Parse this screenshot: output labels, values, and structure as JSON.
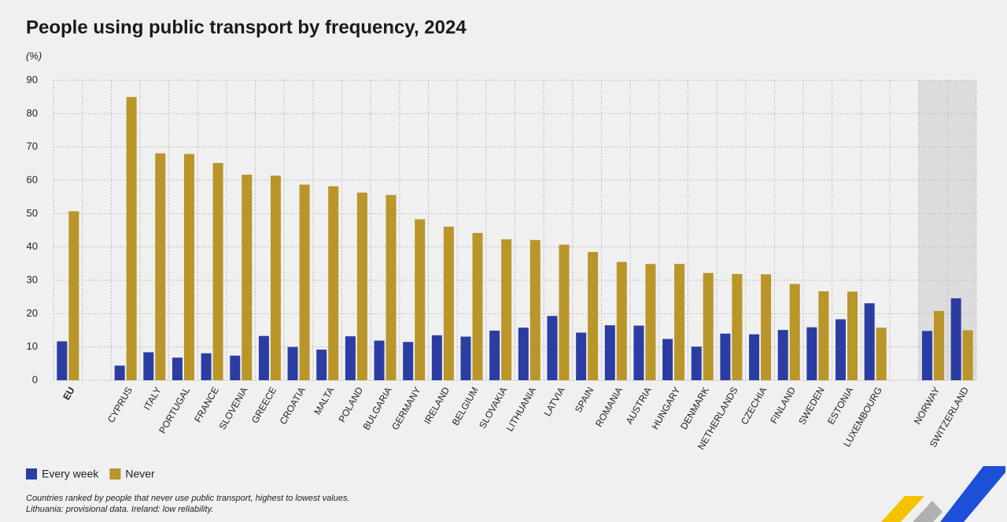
{
  "chart_data": {
    "type": "bar",
    "title": "People using public transport by frequency, 2024",
    "unit_label": "(%)",
    "categories": [
      "EU",
      null,
      "CYPRUS",
      "ITALY",
      "PORTUGAL",
      "FRANCE",
      "SLOVENIA",
      "GREECE",
      "CROATIA",
      "MALTA",
      "POLAND",
      "BULGARIA",
      "GERMANY",
      "IRELAND",
      "BELGIUM",
      "SLOVAKIA",
      "LITHUANIA",
      "LATVIA",
      "SPAIN",
      "ROMANIA",
      "AUSTRIA",
      "HUNGARY",
      "DENMARK",
      "NETHERLANDS",
      "CZECHIA",
      "FINLAND",
      "SWEDEN",
      "ESTONIA",
      "LUXEMBOURG",
      null,
      "NORWAY",
      "SWITZERLAND"
    ],
    "series": [
      {
        "name": "Every week",
        "color": "#2b3da3",
        "values": [
          11.7,
          null,
          4.4,
          8.4,
          6.8,
          8.1,
          7.4,
          13.3,
          10.0,
          9.2,
          13.2,
          11.9,
          11.5,
          13.5,
          13.1,
          14.9,
          15.8,
          19.3,
          14.3,
          16.5,
          16.4,
          12.4,
          10.1,
          14.0,
          13.8,
          15.1,
          15.9,
          18.3,
          23.1,
          null,
          14.8,
          24.6
        ]
      },
      {
        "name": "Never",
        "color": "#b9952a",
        "values": [
          50.7,
          null,
          85.0,
          68.1,
          67.9,
          65.2,
          61.7,
          61.4,
          58.7,
          58.2,
          56.3,
          55.6,
          48.3,
          46.1,
          44.2,
          42.3,
          42.1,
          40.7,
          38.5,
          35.5,
          34.9,
          34.9,
          32.2,
          31.9,
          31.8,
          28.9,
          26.7,
          26.6,
          15.8,
          null,
          20.8,
          15.0
        ]
      }
    ],
    "ylim": [
      0,
      90
    ],
    "yticks": [
      0,
      10,
      20,
      30,
      40,
      50,
      60,
      70,
      80,
      90
    ],
    "grid": true,
    "notes": [
      "Countries ranked by people that never use public transport, highest to lowest values.",
      "Lithuania: provisional data. Ireland: low reliability."
    ]
  }
}
